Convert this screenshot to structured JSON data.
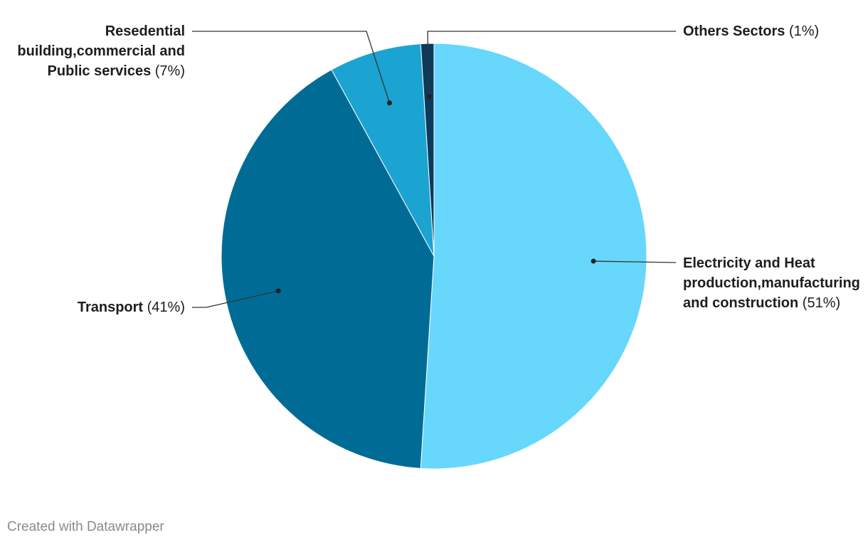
{
  "chart_data": {
    "type": "pie",
    "categories": [
      "Electricity and Heat production,manufacturing and construction",
      "Transport",
      "Resedential building,commercial and Public services",
      "Others Sectors"
    ],
    "values": [
      51,
      41,
      7,
      1
    ],
    "value_labels": [
      "(51%)",
      "(41%)",
      "(7%)",
      "(1%)"
    ],
    "colors": [
      "#67d7fb",
      "#006c96",
      "#1ba3d1",
      "#0b3a5c"
    ],
    "credit": "Created with Datawrapper"
  }
}
